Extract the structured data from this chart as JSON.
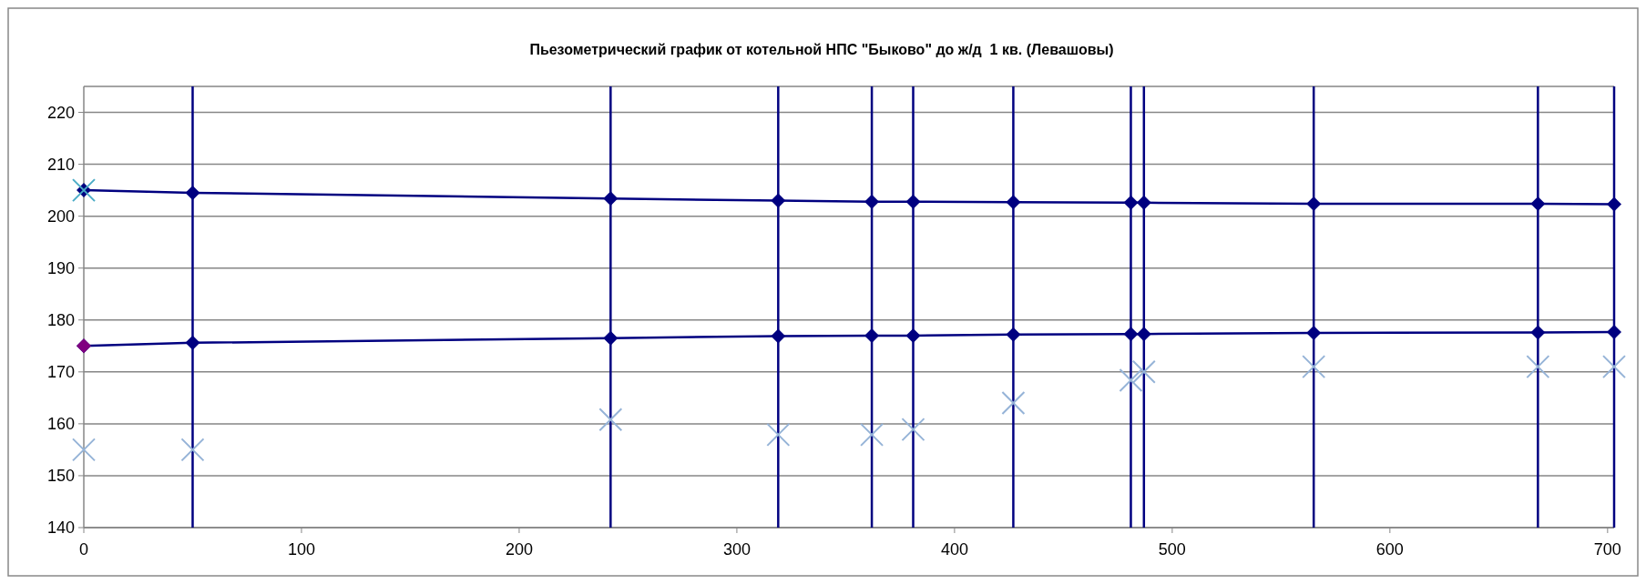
{
  "chart_data": {
    "type": "line",
    "title": "Пьезометрический график от котельной НПС \"Быково\" до ж/д  1 кв. (Левашовы)",
    "x": [
      0,
      50,
      242,
      319,
      362,
      381,
      427,
      481,
      487,
      565,
      668,
      703
    ],
    "series": [
      {
        "color": "#000080",
        "marker": "diamond",
        "values": [
          205,
          204.5,
          203.4,
          203.0,
          202.8,
          202.8,
          202.7,
          202.6,
          202.6,
          202.4,
          202.4,
          202.3
        ]
      },
      {
        "color": "#000080",
        "marker": "diamond",
        "values": [
          175,
          175.6,
          176.5,
          176.9,
          177.0,
          177.0,
          177.2,
          177.3,
          177.3,
          177.5,
          177.6,
          177.7
        ]
      },
      {
        "type": "scatter",
        "color": "#95b3d7",
        "marker": "cross",
        "values": [
          155,
          155,
          160.8,
          157.9,
          157.9,
          158.9,
          164,
          168.4,
          170,
          171,
          171,
          171
        ]
      },
      {
        "type": "scatter",
        "color": "#4bacc6",
        "marker": "cross",
        "x": [
          0
        ],
        "values": [
          205
        ]
      },
      {
        "type": "scatter",
        "color": "#800080",
        "marker": "diamond",
        "x": [
          0
        ],
        "values": [
          175
        ]
      }
    ],
    "ref_lines": [
      {
        "axis": "x",
        "value": 50,
        "color": "#000080"
      },
      {
        "axis": "x",
        "value": 242,
        "color": "#000080"
      },
      {
        "axis": "x",
        "value": 319,
        "color": "#000080"
      },
      {
        "axis": "x",
        "value": 362,
        "color": "#000080"
      },
      {
        "axis": "x",
        "value": 381,
        "color": "#000080"
      },
      {
        "axis": "x",
        "value": 427,
        "color": "#000080"
      },
      {
        "axis": "x",
        "value": 481,
        "color": "#000080"
      },
      {
        "axis": "x",
        "value": 487,
        "color": "#000080"
      },
      {
        "axis": "x",
        "value": 565,
        "color": "#000080"
      },
      {
        "axis": "x",
        "value": 668,
        "color": "#000080"
      },
      {
        "axis": "x",
        "value": 703,
        "color": "#000080"
      }
    ],
    "xlim": [
      0,
      703
    ],
    "xticks": [
      0,
      100,
      200,
      300,
      400,
      500,
      600,
      700
    ],
    "ylim": [
      140,
      225
    ],
    "yticks": [
      140,
      150,
      160,
      170,
      180,
      190,
      200,
      210,
      220
    ],
    "grid": "y"
  }
}
